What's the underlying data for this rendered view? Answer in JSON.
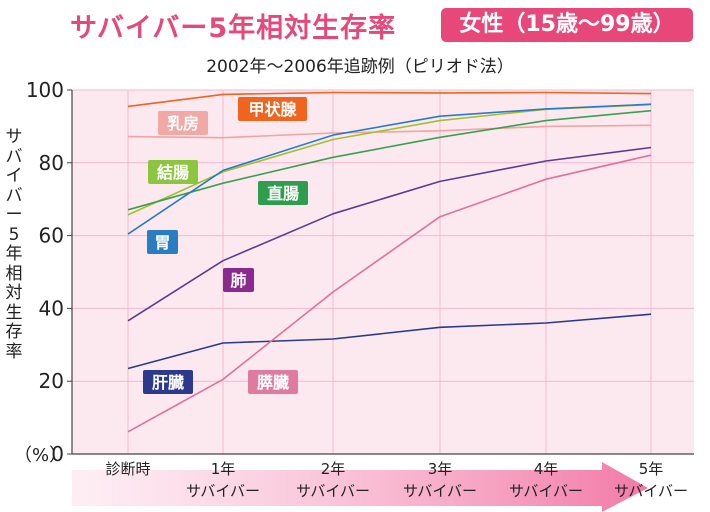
{
  "title": "サバイバー5年相対生存率",
  "badge": "女性（15歳〜99歳）",
  "subtitle": "2002年〜2006年追跡例（ピリオド法）",
  "chart_data": {
    "type": "line",
    "xlabel": "",
    "ylabel": "サバイバー5年相対生存率",
    "yunit": "（%）",
    "ylim": [
      0,
      100
    ],
    "yticks": [
      0,
      20,
      40,
      60,
      80,
      100
    ],
    "grid": true,
    "categories": [
      {
        "line1": "診断時",
        "line2": ""
      },
      {
        "line1": "1年",
        "line2": "サバイバー"
      },
      {
        "line1": "2年",
        "line2": "サバイバー"
      },
      {
        "line1": "3年",
        "line2": "サバイバー"
      },
      {
        "line1": "4年",
        "line2": "サバイバー"
      },
      {
        "line1": "5年",
        "line2": "サバイバー"
      }
    ],
    "series": [
      {
        "name": "甲状腺",
        "color": "#f0641e",
        "label_color": "#f0641e",
        "values": [
          95.5,
          98.8,
          99.3,
          99.2,
          99.3,
          99.0
        ]
      },
      {
        "name": "乳房",
        "color": "#f0a5a0",
        "label_color": "#f2a8a5",
        "values": [
          87.2,
          86.9,
          88.2,
          88.8,
          90.0,
          90.3
        ]
      },
      {
        "name": "結腸",
        "color": "#a0c030",
        "label_color": "#8cc63f",
        "values": [
          65.7,
          77.5,
          86.4,
          91.6,
          94.7,
          96.0
        ]
      },
      {
        "name": "直腸",
        "color": "#3aa050",
        "label_color": "#2e9e4e",
        "values": [
          67.1,
          74.4,
          81.5,
          87.0,
          91.6,
          94.3
        ]
      },
      {
        "name": "胃",
        "color": "#2a7cc0",
        "label_color": "#2a7dc1",
        "values": [
          60.4,
          77.9,
          87.6,
          92.8,
          94.8,
          96.1
        ]
      },
      {
        "name": "肺",
        "color": "#5a3c90",
        "label_color": "#8a2a8e",
        "values": [
          36.6,
          53.1,
          66.0,
          74.9,
          80.5,
          84.2
        ]
      },
      {
        "name": "肝臓",
        "color": "#2a3a8a",
        "label_color": "#2b3a8c",
        "values": [
          23.5,
          30.5,
          31.6,
          34.8,
          36.0,
          38.4
        ]
      },
      {
        "name": "膵臓",
        "color": "#e0709a",
        "label_color": "#e07a9f",
        "values": [
          6.1,
          20.5,
          44.5,
          65.2,
          75.5,
          82.1
        ]
      }
    ]
  }
}
